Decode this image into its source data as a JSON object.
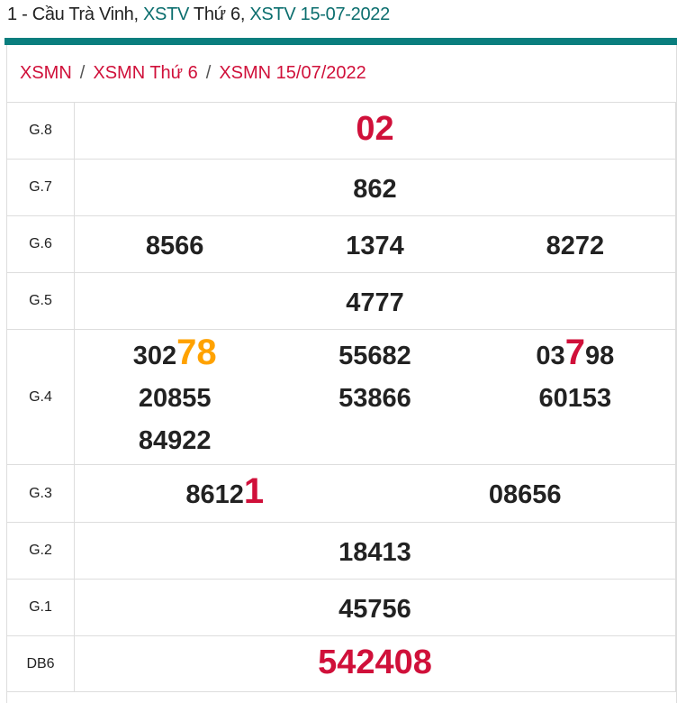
{
  "header": {
    "prefix": "1 - Cầu Trà Vinh, ",
    "link1": "XSTV",
    "mid": " Thứ 6, ",
    "link2": "XSTV 15-07-2022"
  },
  "breadcrumb": {
    "items": [
      "XSMN",
      "XSMN Thứ 6",
      "XSMN 15/07/2022"
    ],
    "separator": "/"
  },
  "colors": {
    "teal": "#0a7e7e",
    "red": "#d0103a",
    "orange": "#ffa200"
  },
  "rows": [
    {
      "label": "G.8",
      "cols": [
        [
          {
            "pre": "",
            "hl": "02",
            "post": "",
            "color": "#d0103a",
            "big": true
          }
        ]
      ]
    },
    {
      "label": "G.7",
      "cols": [
        [
          {
            "pre": "862",
            "hl": "",
            "post": ""
          }
        ]
      ]
    },
    {
      "label": "G.6",
      "cols": [
        [
          {
            "pre": "8566",
            "hl": "",
            "post": ""
          }
        ],
        [
          {
            "pre": "1374",
            "hl": "",
            "post": ""
          }
        ],
        [
          {
            "pre": "8272",
            "hl": "",
            "post": ""
          }
        ]
      ]
    },
    {
      "label": "G.5",
      "cols": [
        [
          {
            "pre": "4777",
            "hl": "",
            "post": ""
          }
        ]
      ]
    },
    {
      "label": "G.4",
      "cols": [
        [
          {
            "pre": "302",
            "hl": "78",
            "post": "",
            "color": "#ffa200"
          },
          {
            "pre": "20855",
            "hl": "",
            "post": ""
          },
          {
            "pre": "84922",
            "hl": "",
            "post": ""
          }
        ],
        [
          {
            "pre": "55682",
            "hl": "",
            "post": ""
          },
          {
            "pre": "53866",
            "hl": "",
            "post": ""
          }
        ],
        [
          {
            "pre": "03",
            "hl": "7",
            "post": "98",
            "color": "#d0103a"
          },
          {
            "pre": "60153",
            "hl": "",
            "post": ""
          }
        ]
      ]
    },
    {
      "label": "G.3",
      "cols": [
        [
          {
            "pre": "8612",
            "hl": "1",
            "post": "",
            "color": "#d0103a"
          }
        ],
        [
          {
            "pre": "08656",
            "hl": "",
            "post": ""
          }
        ]
      ]
    },
    {
      "label": "G.2",
      "cols": [
        [
          {
            "pre": "18413",
            "hl": "",
            "post": ""
          }
        ]
      ]
    },
    {
      "label": "G.1",
      "cols": [
        [
          {
            "pre": "45756",
            "hl": "",
            "post": ""
          }
        ]
      ]
    },
    {
      "label": "DB6",
      "cols": [
        [
          {
            "pre": "",
            "hl": "542408",
            "post": "",
            "color": "#d0103a",
            "big": true
          }
        ]
      ]
    }
  ]
}
